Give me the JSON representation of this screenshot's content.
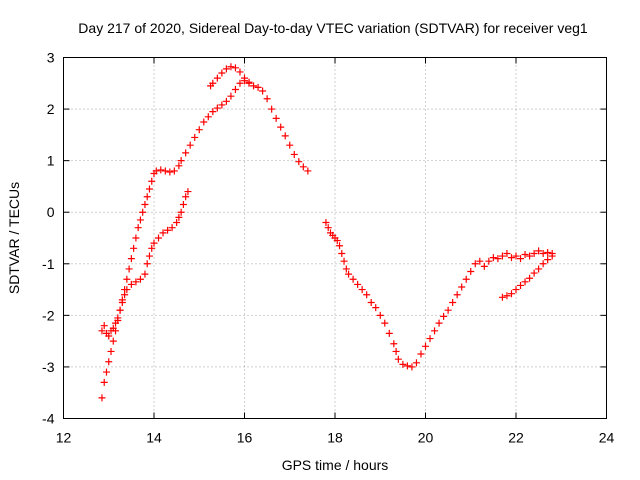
{
  "chart_data": {
    "type": "scatter",
    "title": "Day 217 of 2020, Sidereal Day-to-day VTEC variation (SDTVAR) for receiver veg1",
    "xlabel": "GPS time / hours",
    "ylabel": "SDTVAR / TECUs",
    "xlim": [
      12,
      24
    ],
    "ylim": [
      -4,
      3
    ],
    "xticks": [
      12,
      14,
      16,
      18,
      20,
      22,
      24
    ],
    "yticks": [
      -4,
      -3,
      -2,
      -1,
      0,
      1,
      2,
      3
    ],
    "grid": true,
    "marker": "+",
    "series_color": "#ff0000",
    "series": [
      {
        "name": "upper-track",
        "points": [
          [
            12.85,
            -3.6
          ],
          [
            12.9,
            -3.3
          ],
          [
            12.95,
            -3.1
          ],
          [
            13.0,
            -2.9
          ],
          [
            13.05,
            -2.7
          ],
          [
            13.1,
            -2.5
          ],
          [
            13.15,
            -2.3
          ],
          [
            13.2,
            -2.1
          ],
          [
            13.25,
            -1.9
          ],
          [
            13.3,
            -1.7
          ],
          [
            13.35,
            -1.5
          ],
          [
            13.4,
            -1.3
          ],
          [
            13.45,
            -1.1
          ],
          [
            13.5,
            -0.9
          ],
          [
            13.55,
            -0.7
          ],
          [
            13.6,
            -0.5
          ],
          [
            13.65,
            -0.3
          ],
          [
            13.7,
            -0.15
          ],
          [
            13.75,
            0.0
          ],
          [
            13.8,
            0.15
          ],
          [
            13.85,
            0.3
          ],
          [
            13.9,
            0.45
          ],
          [
            13.95,
            0.6
          ],
          [
            14.0,
            0.75
          ],
          [
            14.05,
            0.8
          ],
          [
            14.15,
            0.82
          ],
          [
            14.25,
            0.8
          ],
          [
            14.35,
            0.78
          ],
          [
            14.45,
            0.8
          ],
          [
            14.55,
            0.9
          ],
          [
            14.6,
            1.0
          ],
          [
            14.7,
            1.15
          ],
          [
            14.8,
            1.3
          ],
          [
            14.9,
            1.45
          ],
          [
            15.0,
            1.6
          ],
          [
            15.1,
            1.75
          ],
          [
            15.2,
            1.85
          ],
          [
            15.3,
            1.95
          ],
          [
            15.4,
            2.02
          ],
          [
            15.5,
            2.08
          ],
          [
            15.6,
            2.15
          ],
          [
            15.7,
            2.25
          ],
          [
            15.8,
            2.38
          ],
          [
            15.9,
            2.5
          ],
          [
            16.0,
            2.55
          ],
          [
            16.1,
            2.52
          ],
          [
            16.2,
            2.45
          ],
          [
            16.3,
            2.42
          ],
          [
            16.4,
            2.35
          ],
          [
            16.5,
            2.2
          ],
          [
            16.6,
            2.0
          ],
          [
            16.7,
            1.82
          ],
          [
            16.8,
            1.65
          ],
          [
            16.9,
            1.48
          ],
          [
            17.0,
            1.3
          ],
          [
            17.1,
            1.12
          ],
          [
            17.2,
            0.98
          ],
          [
            17.3,
            0.88
          ],
          [
            17.4,
            0.8
          ]
        ]
      },
      {
        "name": "lower-track",
        "points": [
          [
            12.85,
            -2.3
          ],
          [
            12.9,
            -2.2
          ],
          [
            12.95,
            -2.35
          ],
          [
            13.0,
            -2.4
          ],
          [
            13.05,
            -2.3
          ],
          [
            13.1,
            -2.25
          ],
          [
            13.15,
            -2.15
          ],
          [
            13.2,
            -2.05
          ],
          [
            13.25,
            -1.9
          ],
          [
            13.3,
            -1.75
          ],
          [
            13.35,
            -1.6
          ],
          [
            13.4,
            -1.5
          ],
          [
            13.5,
            -1.4
          ],
          [
            13.6,
            -1.35
          ],
          [
            13.7,
            -1.3
          ],
          [
            13.8,
            -1.2
          ],
          [
            13.85,
            -1.0
          ],
          [
            13.9,
            -0.85
          ],
          [
            13.95,
            -0.7
          ],
          [
            14.0,
            -0.6
          ],
          [
            14.1,
            -0.5
          ],
          [
            14.2,
            -0.4
          ],
          [
            14.3,
            -0.35
          ],
          [
            14.4,
            -0.3
          ],
          [
            14.5,
            -0.2
          ],
          [
            14.55,
            -0.1
          ],
          [
            14.6,
            0.0
          ],
          [
            14.65,
            0.15
          ],
          [
            14.7,
            0.3
          ],
          [
            14.75,
            0.4
          ]
        ]
      },
      {
        "name": "peak-arc",
        "points": [
          [
            15.25,
            2.45
          ],
          [
            15.3,
            2.5
          ],
          [
            15.4,
            2.6
          ],
          [
            15.5,
            2.7
          ],
          [
            15.6,
            2.78
          ],
          [
            15.7,
            2.82
          ],
          [
            15.8,
            2.8
          ],
          [
            15.9,
            2.72
          ],
          [
            16.0,
            2.6
          ],
          [
            16.1,
            2.5
          ]
        ]
      },
      {
        "name": "descending-track",
        "points": [
          [
            17.8,
            -0.2
          ],
          [
            17.85,
            -0.3
          ],
          [
            17.9,
            -0.4
          ],
          [
            17.95,
            -0.45
          ],
          [
            18.0,
            -0.5
          ],
          [
            18.05,
            -0.55
          ],
          [
            18.1,
            -0.65
          ],
          [
            18.15,
            -0.8
          ],
          [
            18.2,
            -0.95
          ],
          [
            18.25,
            -1.1
          ],
          [
            18.3,
            -1.2
          ],
          [
            18.4,
            -1.3
          ],
          [
            18.5,
            -1.4
          ],
          [
            18.6,
            -1.5
          ],
          [
            18.7,
            -1.6
          ],
          [
            18.8,
            -1.75
          ],
          [
            18.9,
            -1.85
          ],
          [
            19.0,
            -2.0
          ],
          [
            19.1,
            -2.15
          ],
          [
            19.2,
            -2.35
          ],
          [
            19.3,
            -2.55
          ],
          [
            19.35,
            -2.7
          ],
          [
            19.4,
            -2.85
          ],
          [
            19.5,
            -2.95
          ],
          [
            19.6,
            -2.98
          ],
          [
            19.7,
            -3.0
          ],
          [
            19.8,
            -2.92
          ],
          [
            19.9,
            -2.75
          ],
          [
            20.0,
            -2.6
          ],
          [
            20.1,
            -2.45
          ],
          [
            20.2,
            -2.3
          ],
          [
            20.3,
            -2.15
          ],
          [
            20.4,
            -2.02
          ],
          [
            20.5,
            -1.9
          ],
          [
            20.6,
            -1.75
          ],
          [
            20.7,
            -1.6
          ],
          [
            20.8,
            -1.45
          ],
          [
            20.9,
            -1.3
          ],
          [
            21.0,
            -1.15
          ],
          [
            21.1,
            -1.0
          ],
          [
            21.2,
            -0.95
          ],
          [
            21.3,
            -1.05
          ],
          [
            21.4,
            -0.95
          ],
          [
            21.5,
            -0.88
          ],
          [
            21.6,
            -0.9
          ],
          [
            21.7,
            -0.85
          ],
          [
            21.8,
            -0.8
          ],
          [
            21.9,
            -0.88
          ],
          [
            22.0,
            -0.85
          ],
          [
            22.1,
            -0.9
          ],
          [
            22.2,
            -0.82
          ],
          [
            22.3,
            -0.85
          ],
          [
            22.4,
            -0.8
          ],
          [
            22.5,
            -0.75
          ],
          [
            22.6,
            -0.8
          ],
          [
            22.7,
            -0.78
          ],
          [
            22.8,
            -0.8
          ]
        ]
      },
      {
        "name": "lower-right-track",
        "points": [
          [
            21.7,
            -1.65
          ],
          [
            21.8,
            -1.62
          ],
          [
            21.9,
            -1.58
          ],
          [
            22.0,
            -1.5
          ],
          [
            22.1,
            -1.42
          ],
          [
            22.2,
            -1.35
          ],
          [
            22.3,
            -1.28
          ],
          [
            22.4,
            -1.18
          ],
          [
            22.5,
            -1.1
          ],
          [
            22.6,
            -1.0
          ],
          [
            22.7,
            -0.92
          ],
          [
            22.8,
            -0.85
          ]
        ]
      }
    ]
  }
}
